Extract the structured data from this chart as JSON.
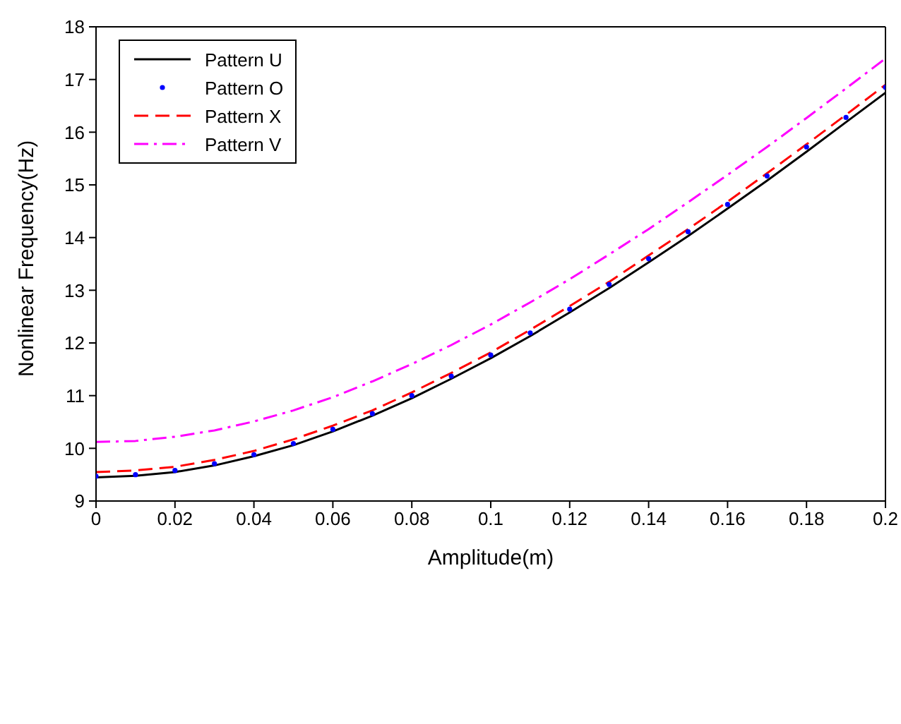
{
  "chart_data": {
    "type": "line",
    "xlabel": "Amplitude(m)",
    "ylabel": "Nonlinear Frequency(Hz)",
    "x": [
      0,
      0.01,
      0.02,
      0.03,
      0.04,
      0.05,
      0.06,
      0.07,
      0.08,
      0.09,
      0.1,
      0.11,
      0.12,
      0.13,
      0.14,
      0.15,
      0.16,
      0.17,
      0.18,
      0.19,
      0.2
    ],
    "series": [
      {
        "name": "Pattern U",
        "color": "#000000",
        "line_style": "solid",
        "marker": "none",
        "values": [
          9.45,
          9.48,
          9.55,
          9.675,
          9.85,
          10.06,
          10.32,
          10.62,
          10.95,
          11.32,
          11.71,
          12.13,
          12.58,
          13.04,
          13.53,
          14.03,
          14.55,
          15.08,
          15.63,
          16.19,
          16.75
        ]
      },
      {
        "name": "Pattern O",
        "type": "scatter",
        "color": "#0000ff",
        "marker": "circle",
        "values": [
          9.47,
          9.5,
          9.58,
          9.71,
          9.88,
          10.09,
          10.36,
          10.66,
          11.0,
          11.37,
          11.77,
          12.19,
          12.64,
          13.11,
          13.6,
          14.11,
          14.63,
          15.17,
          15.72,
          16.28,
          16.85
        ]
      },
      {
        "name": "Pattern X",
        "color": "#ff0000",
        "line_style": "dashed",
        "marker": "none",
        "values": [
          9.55,
          9.58,
          9.65,
          9.78,
          9.95,
          10.17,
          10.43,
          10.72,
          11.06,
          11.43,
          11.82,
          12.25,
          12.7,
          13.16,
          13.66,
          14.16,
          14.68,
          15.22,
          15.77,
          16.33,
          16.9
        ]
      },
      {
        "name": "Pattern V",
        "color": "#ff00ff",
        "line_style": "dashdot",
        "marker": "none",
        "values": [
          10.12,
          10.14,
          10.22,
          10.34,
          10.51,
          10.72,
          10.97,
          11.27,
          11.6,
          11.96,
          12.35,
          12.77,
          13.21,
          13.68,
          14.16,
          14.67,
          15.19,
          15.72,
          16.27,
          16.83,
          17.4
        ]
      }
    ],
    "xlim": [
      0,
      0.2
    ],
    "xticks": [
      0,
      0.02,
      0.04,
      0.06,
      0.08,
      0.1,
      0.12,
      0.14,
      0.16,
      0.18,
      0.2
    ],
    "ylim": [
      9,
      18
    ],
    "yticks": [
      9,
      10,
      11,
      12,
      13,
      14,
      15,
      16,
      17,
      18
    ],
    "grid": false,
    "legend": "top left"
  }
}
